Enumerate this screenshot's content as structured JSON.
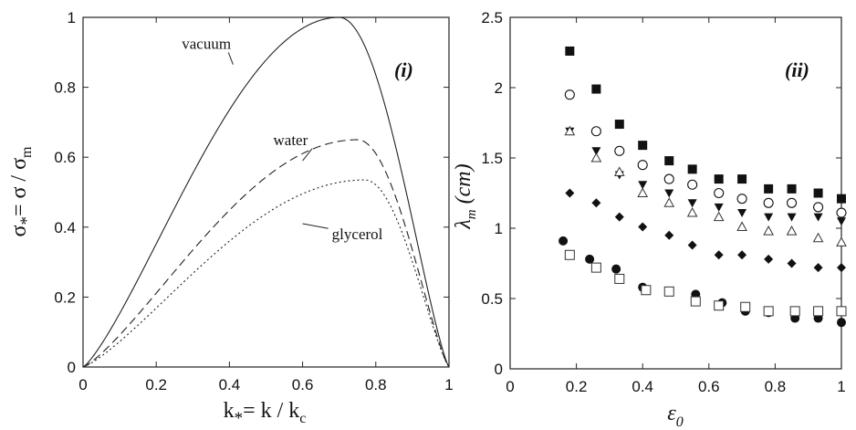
{
  "chart_data": [
    {
      "type": "line",
      "panel_label": "(i)",
      "xlabel": {
        "main": "k",
        "sub": "*",
        "rest": "= k / k",
        "sub2": "c"
      },
      "ylabel": {
        "main": "σ",
        "sub": "*",
        "rest": "= σ / σ",
        "sub2": "m"
      },
      "xlim": [
        0,
        1
      ],
      "ylim": [
        0,
        1
      ],
      "xticks": [
        "0",
        "0.2",
        "0.4",
        "0.6",
        "0.8",
        "1"
      ],
      "yticks": [
        "0",
        "0.2",
        "0.4",
        "0.6",
        "0.8",
        "1"
      ],
      "grid": false,
      "series": [
        {
          "name": "vacuum",
          "style": "solid",
          "peak_x": 0.7,
          "peak_y": 1.0,
          "label_at": {
            "x": 0.27,
            "y": 0.91
          },
          "leader_to": {
            "x": 0.41,
            "y": 0.865
          }
        },
        {
          "name": "water",
          "style": "dashed",
          "peak_x": 0.75,
          "peak_y": 0.65,
          "label_at": {
            "x": 0.52,
            "y": 0.635
          },
          "leader_to": {
            "x": 0.6,
            "y": 0.59
          }
        },
        {
          "name": "glycerol",
          "style": "dotted",
          "peak_x": 0.77,
          "peak_y": 0.535,
          "label_at": {
            "x": 0.68,
            "y": 0.365
          },
          "leader_to": {
            "x": 0.6,
            "y": 0.41
          }
        }
      ]
    },
    {
      "type": "scatter",
      "panel_label": "(ii)",
      "xlabel": {
        "main": "ε",
        "sub": "0"
      },
      "ylabel": {
        "main": "λ",
        "sub": "m",
        "rest": " (cm)"
      },
      "xlim": [
        0,
        1
      ],
      "ylim": [
        0,
        2.5
      ],
      "xticks": [
        "0",
        "0.2",
        "0.4",
        "0.6",
        "0.8",
        "1"
      ],
      "yticks": [
        "0",
        "0.5",
        "1",
        "1.5",
        "2",
        "2.5"
      ],
      "grid": false,
      "series": [
        {
          "marker": "filled-square",
          "x": [
            0.18,
            0.26,
            0.33,
            0.4,
            0.48,
            0.55,
            0.63,
            0.7,
            0.78,
            0.85,
            0.93,
            1.0
          ],
          "y": [
            2.26,
            1.99,
            1.74,
            1.59,
            1.48,
            1.42,
            1.35,
            1.35,
            1.28,
            1.28,
            1.25,
            1.21
          ]
        },
        {
          "marker": "open-circle",
          "x": [
            0.18,
            0.26,
            0.33,
            0.4,
            0.48,
            0.55,
            0.63,
            0.7,
            0.78,
            0.85,
            0.93,
            1.0
          ],
          "y": [
            1.95,
            1.69,
            1.55,
            1.45,
            1.35,
            1.31,
            1.25,
            1.21,
            1.18,
            1.18,
            1.15,
            1.11
          ]
        },
        {
          "marker": "filled-triangle-down",
          "x": [
            0.18,
            0.26,
            0.33,
            0.4,
            0.48,
            0.55,
            0.63,
            0.7,
            0.78,
            0.85,
            0.93,
            1.0
          ],
          "y": [
            1.69,
            1.55,
            1.38,
            1.31,
            1.25,
            1.18,
            1.15,
            1.11,
            1.08,
            1.08,
            1.08,
            1.05
          ]
        },
        {
          "marker": "open-triangle-up",
          "x": [
            0.18,
            0.26,
            0.33,
            0.4,
            0.48,
            0.55,
            0.63,
            0.7,
            0.78,
            0.85,
            0.93,
            1.0
          ],
          "y": [
            1.69,
            1.5,
            1.4,
            1.25,
            1.18,
            1.11,
            1.08,
            1.01,
            0.98,
            0.98,
            0.93,
            0.9
          ]
        },
        {
          "marker": "filled-diamond",
          "x": [
            0.18,
            0.26,
            0.33,
            0.4,
            0.48,
            0.55,
            0.63,
            0.7,
            0.78,
            0.85,
            0.93,
            1.0
          ],
          "y": [
            1.25,
            1.18,
            1.08,
            1.01,
            0.95,
            0.88,
            0.81,
            0.81,
            0.78,
            0.75,
            0.72,
            0.72
          ]
        },
        {
          "marker": "filled-circle",
          "x": [
            0.16,
            0.24,
            0.32,
            0.4,
            0.48,
            0.56,
            0.64,
            0.71,
            0.78,
            0.86,
            0.93,
            1.0
          ],
          "y": [
            0.91,
            0.78,
            0.71,
            0.58,
            0.55,
            0.53,
            0.47,
            0.41,
            0.4,
            0.36,
            0.36,
            0.33
          ]
        },
        {
          "marker": "open-square",
          "x": [
            0.18,
            0.26,
            0.33,
            0.41,
            0.48,
            0.56,
            0.63,
            0.71,
            0.78,
            0.86,
            0.93,
            1.0
          ],
          "y": [
            0.81,
            0.72,
            0.64,
            0.56,
            0.55,
            0.48,
            0.45,
            0.44,
            0.41,
            0.41,
            0.41,
            0.41
          ]
        }
      ]
    }
  ]
}
